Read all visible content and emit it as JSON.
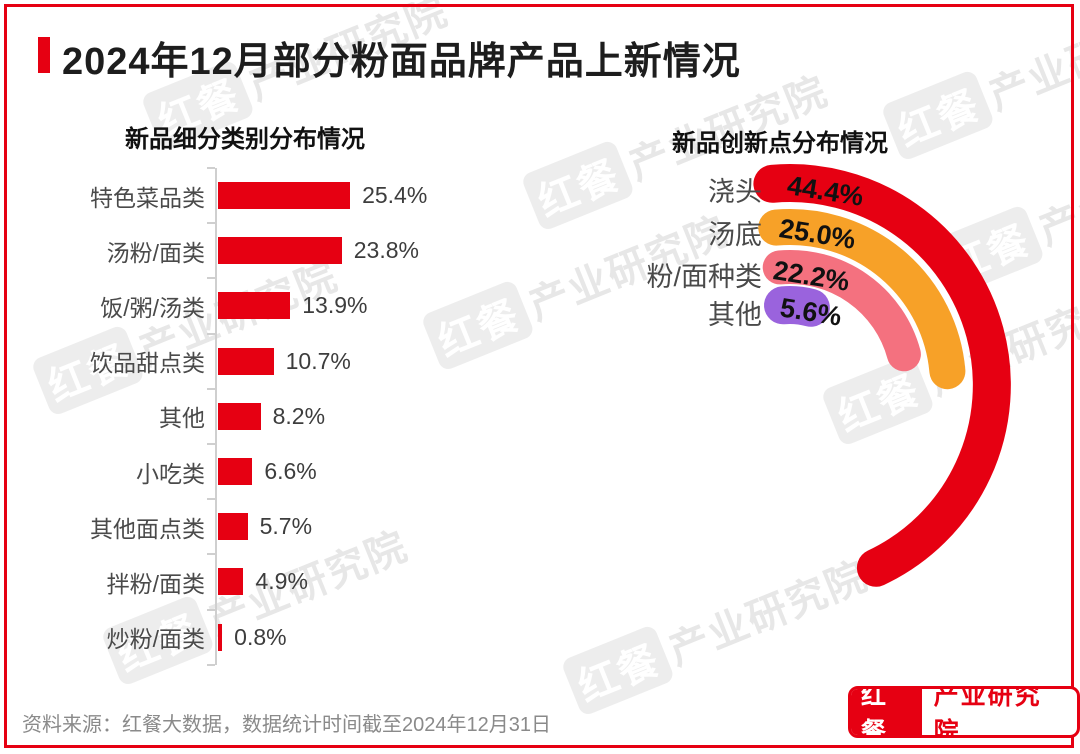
{
  "page": {
    "title": "2024年12月部分粉面品牌产品上新情况",
    "source_note": "资料来源：红餐大数据，数据统计时间截至2024年12月31日",
    "logo": {
      "brand": "红餐",
      "suffix": "产业研究院"
    },
    "watermark": {
      "brand": "红餐",
      "suffix": "产业研究院"
    },
    "colors": {
      "accent_red": "#e60012",
      "frame": "#e60012"
    }
  },
  "chart_data": [
    {
      "type": "bar",
      "orientation": "horizontal",
      "title": "新品细分类别分布情况",
      "categories": [
        "特色菜品类",
        "汤粉/面类",
        "饭/粥/汤类",
        "饮品甜点类",
        "其他",
        "小吃类",
        "其他面点类",
        "拌粉/面类",
        "炒粉/面类"
      ],
      "values": [
        25.4,
        23.8,
        13.9,
        10.7,
        8.2,
        6.6,
        5.7,
        4.9,
        0.8
      ],
      "labels": [
        "25.4%",
        "23.8%",
        "13.9%",
        "10.7%",
        "8.2%",
        "6.6%",
        "5.7%",
        "4.9%",
        "0.8%"
      ],
      "bar_color": "#e60012",
      "xlabel": "",
      "ylabel": "",
      "xlim": [
        0,
        30
      ],
      "grid": false,
      "legend": false
    },
    {
      "type": "radial-bar",
      "title": "新品创新点分布情况",
      "categories": [
        "浇头",
        "汤底",
        "粉/面种类",
        "其他"
      ],
      "values": [
        44.4,
        25.0,
        22.2,
        5.6
      ],
      "labels": [
        "44.4%",
        "25.0%",
        "22.2%",
        "5.6%"
      ],
      "colors": [
        "#e60012",
        "#f7a128",
        "#f4717f",
        "#9a63dd"
      ],
      "angle_scale": "value_pct_of_360",
      "legend": false
    }
  ]
}
